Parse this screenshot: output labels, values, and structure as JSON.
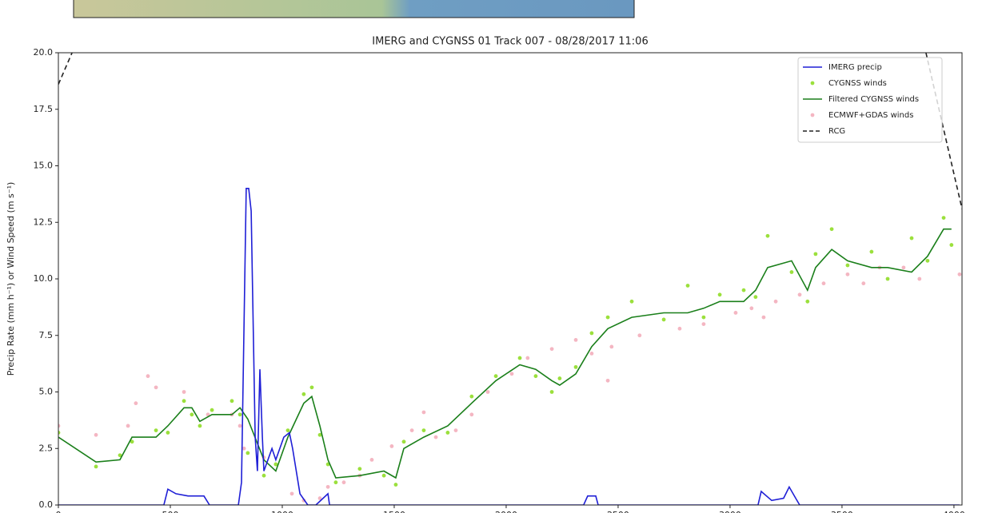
{
  "chart_data": {
    "type": "line",
    "title": "IMERG and CYGNSS 01 Track 007 - 08/28/2017 11:06",
    "y_label": "Precip Rate (mm h⁻¹) or Wind Speed (m s⁻¹)",
    "xlim": [
      0,
      4036
    ],
    "ylim": [
      0,
      20
    ],
    "xticks": [
      0,
      500,
      1000,
      1500,
      2000,
      2500,
      3000,
      3500,
      4000
    ],
    "yticks": [
      {
        "value": 0,
        "label": "0.0"
      },
      {
        "value": 2.5,
        "label": "2.5"
      },
      {
        "value": 5,
        "label": "5.0"
      },
      {
        "value": 7.5,
        "label": "7.5"
      },
      {
        "value": 10,
        "label": "10.0"
      },
      {
        "value": 12.5,
        "label": "12.5"
      },
      {
        "value": 15,
        "label": "15.0"
      },
      {
        "value": 17.5,
        "label": "17.5"
      },
      {
        "value": 20,
        "label": "20.0"
      }
    ],
    "legend": "upper right",
    "series": [
      {
        "name": "IMERG precip",
        "color": "#1f1fd6",
        "style": "line",
        "x": [
          0,
          471,
          489,
          525,
          579,
          650,
          675,
          804,
          818,
          839,
          850,
          861,
          879,
          889,
          900,
          911,
          918,
          954,
          971,
          1007,
          1032,
          1046,
          1079,
          1114,
          1150,
          1204,
          1211,
          2346,
          2364,
          2400,
          2411,
          3125,
          3139,
          3186,
          3239,
          3264,
          3293,
          3311,
          4025
        ],
        "values": [
          0,
          0,
          0.7,
          0.5,
          0.4,
          0.4,
          0,
          0,
          1,
          14,
          14,
          13,
          3,
          1.5,
          6,
          3,
          1.5,
          2.5,
          2.0,
          3.0,
          3.2,
          2.5,
          0.5,
          0,
          0,
          0.5,
          0,
          0,
          0.4,
          0.4,
          0,
          0,
          0.6,
          0.2,
          0.3,
          0.8,
          0.3,
          0,
          0
        ]
      },
      {
        "name": "CYGNSS winds",
        "color": "#9be03c",
        "style": "dots",
        "x": [
          0,
          168,
          275,
          329,
          436,
          489,
          561,
          596,
          632,
          686,
          775,
          811,
          846,
          918,
          971,
          1025,
          1096,
          1132,
          1168,
          1204,
          1239,
          1346,
          1454,
          1507,
          1543,
          1632,
          1739,
          1846,
          1954,
          2061,
          2132,
          2204,
          2239,
          2311,
          2382,
          2454,
          2561,
          2704,
          2811,
          2882,
          2954,
          3061,
          3114,
          3168,
          3275,
          3346,
          3382,
          3454,
          3525,
          3632,
          3704,
          3811,
          3882,
          3954,
          3989
        ],
        "values": [
          3.2,
          1.7,
          2.2,
          2.8,
          3.3,
          3.2,
          4.6,
          4.0,
          3.5,
          4.2,
          4.6,
          4.0,
          2.3,
          1.3,
          1.8,
          3.3,
          4.9,
          5.2,
          3.1,
          1.8,
          1.0,
          1.6,
          1.3,
          0.9,
          2.8,
          3.3,
          3.2,
          4.8,
          5.7,
          6.5,
          5.7,
          5.0,
          5.6,
          6.1,
          7.6,
          8.3,
          9.0,
          8.2,
          9.7,
          8.3,
          9.3,
          9.5,
          9.2,
          11.9,
          10.3,
          9.0,
          11.1,
          12.2,
          10.6,
          11.2,
          10.0,
          11.8,
          10.8,
          12.7,
          11.5
        ]
      },
      {
        "name": "Filtered CYGNSS winds",
        "color": "#1a7f1a",
        "style": "line",
        "x": [
          0,
          168,
          275,
          329,
          436,
          489,
          561,
          596,
          632,
          686,
          775,
          811,
          846,
          918,
          971,
          1025,
          1096,
          1132,
          1168,
          1204,
          1239,
          1346,
          1454,
          1507,
          1543,
          1632,
          1739,
          1846,
          1954,
          2061,
          2132,
          2204,
          2239,
          2311,
          2382,
          2454,
          2561,
          2704,
          2811,
          2882,
          2954,
          3061,
          3114,
          3168,
          3275,
          3346,
          3382,
          3454,
          3525,
          3632,
          3704,
          3811,
          3882,
          3954,
          3989
        ],
        "values": [
          3.0,
          1.9,
          2.0,
          3.0,
          3.0,
          3.5,
          4.3,
          4.3,
          3.7,
          4.0,
          4.0,
          4.3,
          3.8,
          2.0,
          1.5,
          3.0,
          4.5,
          4.8,
          3.5,
          2.0,
          1.2,
          1.3,
          1.5,
          1.2,
          2.5,
          3.0,
          3.5,
          4.5,
          5.5,
          6.2,
          6.0,
          5.5,
          5.3,
          5.8,
          7.0,
          7.8,
          8.3,
          8.5,
          8.5,
          8.7,
          9.0,
          9.0,
          9.5,
          10.5,
          10.8,
          9.5,
          10.5,
          11.3,
          10.8,
          10.5,
          10.5,
          10.3,
          11.0,
          12.2,
          12.2
        ]
      },
      {
        "name": "ECMWF+GDAS winds",
        "color": "#f4b6c2",
        "style": "dots",
        "x": [
          0,
          168,
          311,
          346,
          400,
          436,
          561,
          668,
          775,
          811,
          829,
          918,
          971,
          1043,
          1096,
          1168,
          1204,
          1275,
          1346,
          1400,
          1489,
          1543,
          1579,
          1632,
          1686,
          1775,
          1846,
          1918,
          2025,
          2096,
          2204,
          2311,
          2382,
          2454,
          2471,
          2596,
          2775,
          2882,
          3025,
          3096,
          3150,
          3204,
          3311,
          3418,
          3525,
          3596,
          3668,
          3775,
          3846,
          4025
        ],
        "values": [
          3.5,
          3.1,
          3.5,
          4.5,
          5.7,
          5.2,
          5.0,
          4.0,
          4.0,
          3.5,
          2.5,
          2.1,
          1.8,
          0.5,
          0.2,
          0.3,
          0.8,
          1.0,
          1.3,
          2.0,
          2.6,
          2.8,
          3.3,
          4.1,
          3.0,
          3.3,
          4.0,
          5.0,
          5.8,
          6.5,
          6.9,
          7.3,
          6.7,
          5.5,
          7.0,
          7.5,
          7.8,
          8.0,
          8.5,
          8.7,
          8.3,
          9.0,
          9.3,
          9.8,
          10.2,
          9.8,
          10.5,
          10.5,
          10.0,
          10.2
        ]
      },
      {
        "name": "RCG",
        "color": "#222222",
        "style": "dashed",
        "x": [
          0,
          61,
          3000,
          3875,
          4036
        ],
        "values": [
          18.6,
          20,
          null,
          20,
          13.1
        ]
      }
    ]
  }
}
